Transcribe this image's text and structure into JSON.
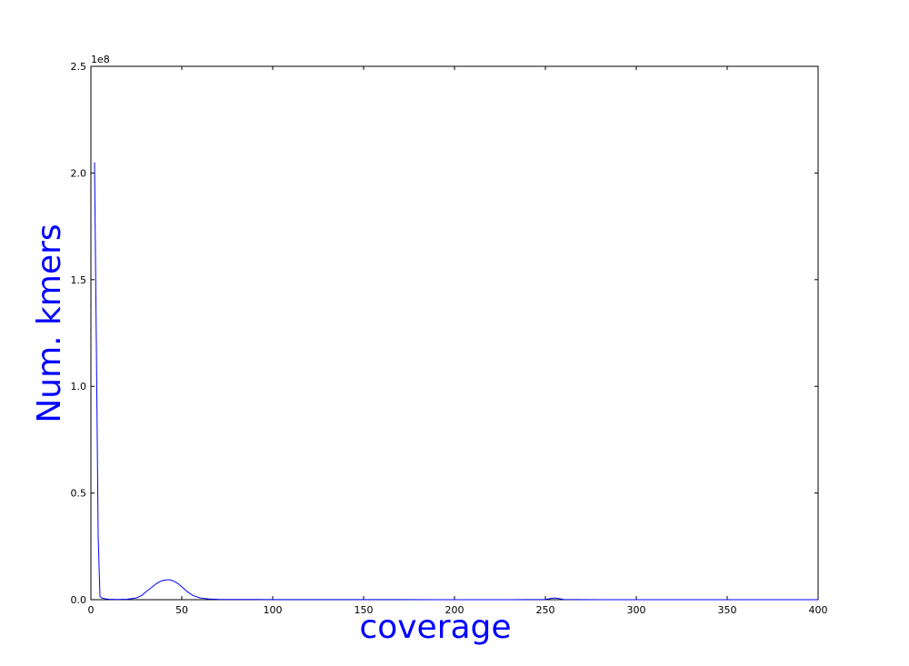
{
  "chart_data": {
    "type": "line",
    "title": "",
    "xlabel": "coverage",
    "ylabel": "Num. kmers",
    "xlim": [
      0,
      400
    ],
    "ylim": [
      0,
      250000000
    ],
    "y_offset_label": "1e8",
    "x_ticks": [
      0,
      50,
      100,
      150,
      200,
      250,
      300,
      350,
      400
    ],
    "x_tick_labels": [
      "0",
      "50",
      "100",
      "150",
      "200",
      "250",
      "300",
      "350",
      "400"
    ],
    "y_ticks": [
      0,
      50000000,
      100000000,
      150000000,
      200000000,
      250000000
    ],
    "y_tick_labels": [
      "0.0",
      "0.5",
      "1.0",
      "1.5",
      "2.0",
      "2.5"
    ],
    "grid": false,
    "series": [
      {
        "color": "#0000ff",
        "x": [
          2,
          3,
          4,
          5,
          6,
          8,
          10,
          15,
          20,
          25,
          28,
          30,
          33,
          36,
          38,
          40,
          42,
          43,
          44,
          46,
          48,
          50,
          53,
          56,
          60,
          65,
          70,
          80,
          90,
          100,
          120,
          150,
          170,
          190,
          200,
          230,
          250,
          253,
          255,
          257,
          260,
          280,
          300,
          350,
          400
        ],
        "y": [
          205000000,
          120000000,
          30000000,
          1500000,
          800000,
          400000,
          200000,
          100000,
          200000,
          800000,
          2000000,
          3500000,
          5500000,
          7500000,
          8500000,
          9100000,
          9300000,
          9300000,
          9200000,
          8500000,
          7500000,
          6000000,
          3800000,
          2000000,
          800000,
          300000,
          150000,
          100000,
          80000,
          60000,
          40000,
          30000,
          30000,
          20000,
          15000,
          10000,
          100000,
          600000,
          800000,
          600000,
          100000,
          10000,
          5000,
          2000,
          1000
        ]
      }
    ]
  }
}
